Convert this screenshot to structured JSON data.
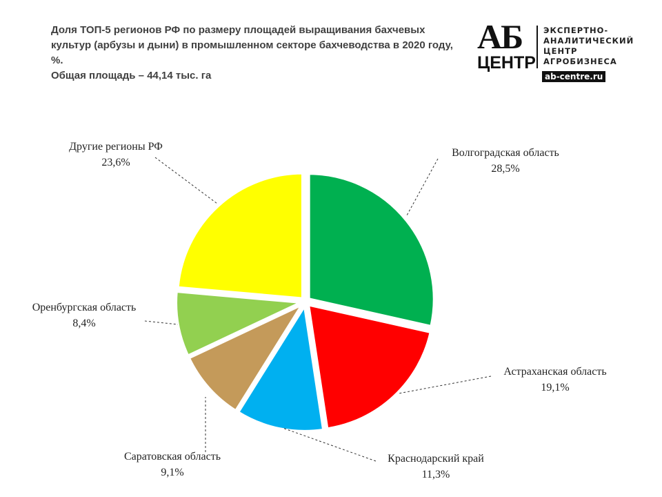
{
  "chart_data": {
    "type": "pie",
    "title": "Доля ТОП-5 регионов РФ по размеру площадей выращивания бахчевых культур (арбузы и дыни) в промышленном секторе бахчеводства в 2020 году, %.",
    "subtitle": "Общая площадь – 44,14 тыс. га",
    "categories": [
      "Волгоградская область",
      "Астраханская область",
      "Краснодарский край",
      "Саратовская область",
      "Оренбургская область",
      "Другие регионы РФ"
    ],
    "values": [
      28.5,
      19.1,
      11.3,
      9.1,
      8.4,
      23.6
    ],
    "value_labels": [
      "28,5%",
      "19,1%",
      "11,3%",
      "9,1%",
      "8,4%",
      "23,6%"
    ],
    "colors": [
      "#00b050",
      "#ff0000",
      "#00b0f0",
      "#c49a5a",
      "#92d050",
      "#ffff00"
    ]
  },
  "logo": {
    "mark": "АБ",
    "word": "ЦЕНТР",
    "lines": [
      "ЭКСПЕРТНО-",
      "АНАЛИТИЧЕСКИЙ",
      "ЦЕНТР",
      "АГРОБИЗНЕСА"
    ],
    "site": "ab-centre.ru"
  }
}
